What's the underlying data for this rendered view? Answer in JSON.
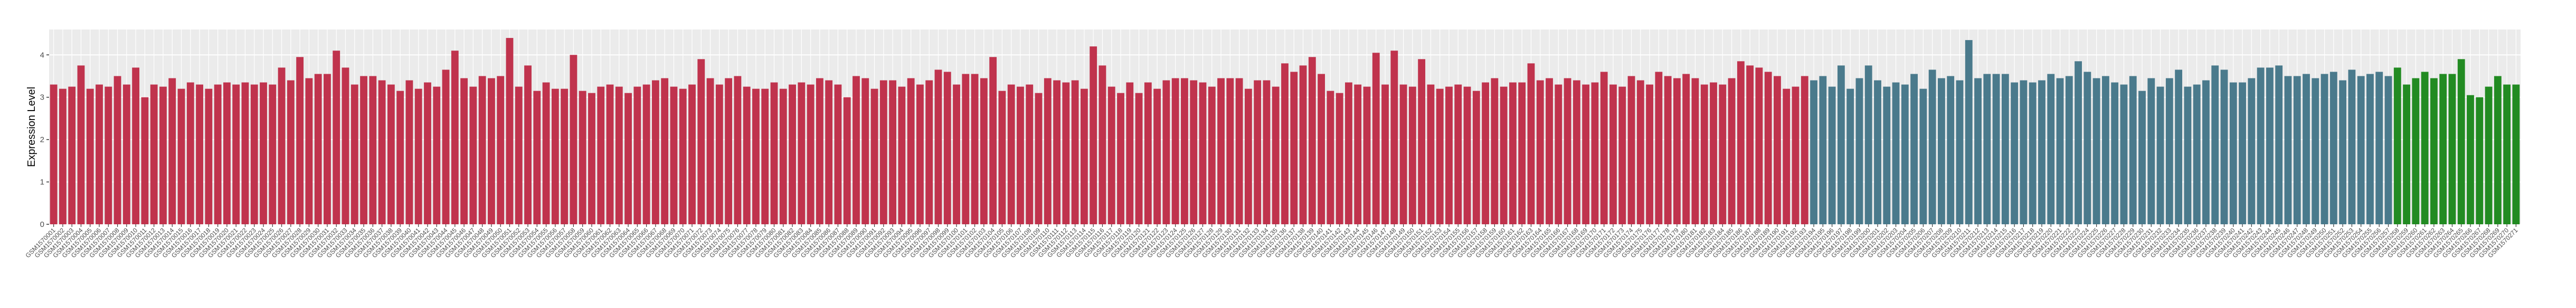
{
  "chart_data": {
    "type": "bar",
    "ylabel": "Expression Level",
    "ylim": [
      0,
      4.6
    ],
    "yticks": [
      0,
      1,
      2,
      3,
      4
    ],
    "grid": true,
    "categories": [
      "GSM1570001",
      "GSM1570002",
      "GSM1570003",
      "GSM1570004",
      "GSM1570005",
      "GSM1570006",
      "GSM1570007",
      "GSM1570008",
      "GSM1570009",
      "GSM1570010",
      "GSM1570011",
      "GSM1570012",
      "GSM1570013",
      "GSM1570014",
      "GSM1570015",
      "GSM1570016",
      "GSM1570017",
      "GSM1570018",
      "GSM1570019",
      "GSM1570020",
      "GSM1570021",
      "GSM1570022",
      "GSM1570023",
      "GSM1570024",
      "GSM1570025",
      "GSM1570026",
      "GSM1570027",
      "GSM1570028",
      "GSM1570029",
      "GSM1570030",
      "GSM1570031",
      "GSM1570032",
      "GSM1570033",
      "GSM1570034",
      "GSM1570035",
      "GSM1570036",
      "GSM1570037",
      "GSM1570038",
      "GSM1570039",
      "GSM1570040",
      "GSM1570041",
      "GSM1570042",
      "GSM1570043",
      "GSM1570044",
      "GSM1570045",
      "GSM1570046",
      "GSM1570047",
      "GSM1570048",
      "GSM1570049",
      "GSM1570050",
      "GSM1570051",
      "GSM1570052",
      "GSM1570053",
      "GSM1570054",
      "GSM1570055",
      "GSM1570056",
      "GSM1570057",
      "GSM1570058",
      "GSM1570059",
      "GSM1570060",
      "GSM1570061",
      "GSM1570062",
      "GSM1570063",
      "GSM1570064",
      "GSM1570065",
      "GSM1570066",
      "GSM1570067",
      "GSM1570068",
      "GSM1570069",
      "GSM1570070",
      "GSM1570071",
      "GSM1570072",
      "GSM1570073",
      "GSM1570074",
      "GSM1570075",
      "GSM1570076",
      "GSM1570077",
      "GSM1570078",
      "GSM1570079",
      "GSM1570080",
      "GSM1570081",
      "GSM1570082",
      "GSM1570083",
      "GSM1570084",
      "GSM1570085",
      "GSM1570086",
      "GSM1570087",
      "GSM1570088",
      "GSM1570089",
      "GSM1570090",
      "GSM1570091",
      "GSM1570092",
      "GSM1570093",
      "GSM1570094",
      "GSM1570095",
      "GSM1570096",
      "GSM1570097",
      "GSM1570098",
      "GSM1570099",
      "GSM1570100",
      "GSM1570101",
      "GSM1570102",
      "GSM1570103",
      "GSM1570104",
      "GSM1570105",
      "GSM1570106",
      "GSM1570107",
      "GSM1570108",
      "GSM1570109",
      "GSM1570110",
      "GSM1570111",
      "GSM1570112",
      "GSM1570113",
      "GSM1570114",
      "GSM1570115",
      "GSM1570116",
      "GSM1570117",
      "GSM1570118",
      "GSM1570119",
      "GSM1570120",
      "GSM1570121",
      "GSM1570122",
      "GSM1570123",
      "GSM1570124",
      "GSM1570125",
      "GSM1570126",
      "GSM1570127",
      "GSM1570128",
      "GSM1570129",
      "GSM1570130",
      "GSM1570131",
      "GSM1570132",
      "GSM1570133",
      "GSM1570134",
      "GSM1570135",
      "GSM1570136",
      "GSM1570137",
      "GSM1570138",
      "GSM1570139",
      "GSM1570140",
      "GSM1570141",
      "GSM1570142",
      "GSM1570143",
      "GSM1570144",
      "GSM1570145",
      "GSM1570146",
      "GSM1570147",
      "GSM1570148",
      "GSM1570149",
      "GSM1570150",
      "GSM1570151",
      "GSM1570152",
      "GSM1570153",
      "GSM1570154",
      "GSM1570155",
      "GSM1570156",
      "GSM1570157",
      "GSM1570158",
      "GSM1570159",
      "GSM1570160",
      "GSM1570161",
      "GSM1570162",
      "GSM1570163",
      "GSM1570164",
      "GSM1570165",
      "GSM1570166",
      "GSM1570167",
      "GSM1570168",
      "GSM1570169",
      "GSM1570170",
      "GSM1570171",
      "GSM1570172",
      "GSM1570173",
      "GSM1570174",
      "GSM1570175",
      "GSM1570176",
      "GSM1570177",
      "GSM1570178",
      "GSM1570179",
      "GSM1570180",
      "GSM1570181",
      "GSM1570182",
      "GSM1570183",
      "GSM1570184",
      "GSM1570185",
      "GSM1570186",
      "GSM1570187",
      "GSM1570188",
      "GSM1570189",
      "GSM1570190",
      "GSM1570191",
      "GSM1570192",
      "GSM1570193",
      "GSM1570194",
      "GSM1570195",
      "GSM1570196",
      "GSM1570197",
      "GSM1570198",
      "GSM1570199",
      "GSM1570200",
      "GSM1570201",
      "GSM1570202",
      "GSM1570203",
      "GSM1570204",
      "GSM1570205",
      "GSM1570206",
      "GSM1570207",
      "GSM1570208",
      "GSM1570209",
      "GSM1570210",
      "GSM1570211",
      "GSM1570212",
      "GSM1570213",
      "GSM1570214",
      "GSM1570215",
      "GSM1570216",
      "GSM1570217",
      "GSM1570218",
      "GSM1570219",
      "GSM1570220",
      "GSM1570221",
      "GSM1570222",
      "GSM1570223",
      "GSM1570224",
      "GSM1570225",
      "GSM1570226",
      "GSM1570227",
      "GSM1570228",
      "GSM1570229",
      "GSM1570230",
      "GSM1570231",
      "GSM1570232",
      "GSM1570233",
      "GSM1570234",
      "GSM1570235",
      "GSM1570236",
      "GSM1570237",
      "GSM1570238",
      "GSM1570239",
      "GSM1570240",
      "GSM1570241",
      "GSM1570242",
      "GSM1570243",
      "GSM1570244",
      "GSM1570245",
      "GSM1570246",
      "GSM1570247",
      "GSM1570248",
      "GSM1570249",
      "GSM1570250",
      "GSM1570251",
      "GSM1570252",
      "GSM1570253",
      "GSM1570254",
      "GSM1570255",
      "GSM1570256",
      "GSM1570257",
      "GSM1570258",
      "GSM1570259",
      "GSM1570260",
      "GSM1570261",
      "GSM1570262",
      "GSM1570263",
      "GSM1570264",
      "GSM1570265",
      "GSM1570266",
      "GSM1570267",
      "GSM1570268",
      "GSM1570269",
      "GSM1570270",
      "GSM1570271"
    ],
    "values": [
      3.3,
      3.2,
      3.25,
      3.75,
      3.2,
      3.3,
      3.25,
      3.5,
      3.3,
      3.7,
      3.0,
      3.3,
      3.25,
      3.45,
      3.2,
      3.35,
      3.3,
      3.2,
      3.3,
      3.35,
      3.3,
      3.35,
      3.3,
      3.35,
      3.3,
      3.7,
      3.4,
      3.95,
      3.45,
      3.55,
      3.55,
      4.1,
      3.7,
      3.3,
      3.5,
      3.5,
      3.4,
      3.3,
      3.15,
      3.4,
      3.2,
      3.35,
      3.25,
      3.65,
      4.1,
      3.45,
      3.25,
      3.5,
      3.45,
      3.5,
      4.4,
      3.25,
      3.75,
      3.15,
      3.35,
      3.2,
      3.2,
      4.0,
      3.15,
      3.1,
      3.25,
      3.3,
      3.25,
      3.1,
      3.25,
      3.3,
      3.4,
      3.45,
      3.25,
      3.2,
      3.3,
      3.9,
      3.45,
      3.3,
      3.45,
      3.5,
      3.25,
      3.2,
      3.2,
      3.35,
      3.2,
      3.3,
      3.35,
      3.3,
      3.45,
      3.4,
      3.3,
      3.0,
      3.5,
      3.45,
      3.2,
      3.4,
      3.4,
      3.25,
      3.45,
      3.3,
      3.4,
      3.65,
      3.6,
      3.3,
      3.55,
      3.55,
      3.45,
      3.95,
      3.15,
      3.3,
      3.25,
      3.3,
      3.1,
      3.45,
      3.4,
      3.35,
      3.4,
      3.2,
      4.2,
      3.75,
      3.25,
      3.1,
      3.35,
      3.1,
      3.35,
      3.2,
      3.4,
      3.45,
      3.45,
      3.4,
      3.35,
      3.25,
      3.45,
      3.45,
      3.45,
      3.2,
      3.4,
      3.4,
      3.25,
      3.8,
      3.6,
      3.75,
      3.95,
      3.55,
      3.15,
      3.1,
      3.35,
      3.3,
      3.25,
      4.05,
      3.3,
      4.1,
      3.3,
      3.25,
      3.9,
      3.3,
      3.2,
      3.25,
      3.3,
      3.25,
      3.15,
      3.35,
      3.45,
      3.25,
      3.35,
      3.35,
      3.8,
      3.4,
      3.45,
      3.3,
      3.45,
      3.4,
      3.3,
      3.35,
      3.6,
      3.3,
      3.25,
      3.5,
      3.4,
      3.3,
      3.6,
      3.5,
      3.45,
      3.55,
      3.45,
      3.3,
      3.35,
      3.3,
      3.45,
      3.85,
      3.75,
      3.7,
      3.6,
      3.5,
      3.2,
      3.25,
      3.5,
      3.4,
      3.5,
      3.25,
      3.75,
      3.2,
      3.45,
      3.75,
      3.4,
      3.25,
      3.35,
      3.3,
      3.55,
      3.2,
      3.65,
      3.45,
      3.5,
      3.4,
      4.35,
      3.45,
      3.55,
      3.55,
      3.55,
      3.35,
      3.4,
      3.35,
      3.4,
      3.55,
      3.45,
      3.5,
      3.85,
      3.6,
      3.45,
      3.5,
      3.35,
      3.3,
      3.5,
      3.15,
      3.45,
      3.25,
      3.45,
      3.65,
      3.25,
      3.3,
      3.4,
      3.75,
      3.65,
      3.35,
      3.35,
      3.45,
      3.7,
      3.7,
      3.75,
      3.5,
      3.5,
      3.55,
      3.45,
      3.55,
      3.6,
      3.4,
      3.65,
      3.5,
      3.55,
      3.6,
      3.5,
      3.7,
      3.3,
      3.45,
      3.6,
      3.45,
      3.55,
      3.55,
      3.9,
      3.05,
      3.0,
      3.25,
      3.5,
      3.3,
      3.3
    ],
    "colors": [
      "#c0334d",
      "#c0334d",
      "#c0334d",
      "#c0334d",
      "#c0334d",
      "#c0334d",
      "#c0334d",
      "#c0334d",
      "#c0334d",
      "#c0334d",
      "#c0334d",
      "#c0334d",
      "#c0334d",
      "#c0334d",
      "#c0334d",
      "#c0334d",
      "#c0334d",
      "#c0334d",
      "#c0334d",
      "#c0334d",
      "#c0334d",
      "#c0334d",
      "#c0334d",
      "#c0334d",
      "#c0334d",
      "#c0334d",
      "#c0334d",
      "#c0334d",
      "#c0334d",
      "#c0334d",
      "#c0334d",
      "#c0334d",
      "#c0334d",
      "#c0334d",
      "#c0334d",
      "#c0334d",
      "#c0334d",
      "#c0334d",
      "#c0334d",
      "#c0334d",
      "#c0334d",
      "#c0334d",
      "#c0334d",
      "#c0334d",
      "#c0334d",
      "#c0334d",
      "#c0334d",
      "#c0334d",
      "#c0334d",
      "#c0334d",
      "#c0334d",
      "#c0334d",
      "#c0334d",
      "#c0334d",
      "#c0334d",
      "#c0334d",
      "#c0334d",
      "#c0334d",
      "#c0334d",
      "#c0334d",
      "#c0334d",
      "#c0334d",
      "#c0334d",
      "#c0334d",
      "#c0334d",
      "#c0334d",
      "#c0334d",
      "#c0334d",
      "#c0334d",
      "#c0334d",
      "#c0334d",
      "#c0334d",
      "#c0334d",
      "#c0334d",
      "#c0334d",
      "#c0334d",
      "#c0334d",
      "#c0334d",
      "#c0334d",
      "#c0334d",
      "#c0334d",
      "#c0334d",
      "#c0334d",
      "#c0334d",
      "#c0334d",
      "#c0334d",
      "#c0334d",
      "#c0334d",
      "#c0334d",
      "#c0334d",
      "#c0334d",
      "#c0334d",
      "#c0334d",
      "#c0334d",
      "#c0334d",
      "#c0334d",
      "#c0334d",
      "#c0334d",
      "#c0334d",
      "#c0334d",
      "#c0334d",
      "#c0334d",
      "#c0334d",
      "#c0334d",
      "#c0334d",
      "#c0334d",
      "#c0334d",
      "#c0334d",
      "#c0334d",
      "#c0334d",
      "#c0334d",
      "#c0334d",
      "#c0334d",
      "#c0334d",
      "#c0334d",
      "#c0334d",
      "#c0334d",
      "#c0334d",
      "#c0334d",
      "#c0334d",
      "#c0334d",
      "#c0334d",
      "#c0334d",
      "#c0334d",
      "#c0334d",
      "#c0334d",
      "#c0334d",
      "#c0334d",
      "#c0334d",
      "#c0334d",
      "#c0334d",
      "#c0334d",
      "#c0334d",
      "#c0334d",
      "#c0334d",
      "#c0334d",
      "#c0334d",
      "#c0334d",
      "#c0334d",
      "#c0334d",
      "#c0334d",
      "#c0334d",
      "#c0334d",
      "#c0334d",
      "#c0334d",
      "#c0334d",
      "#c0334d",
      "#c0334d",
      "#c0334d",
      "#c0334d",
      "#c0334d",
      "#c0334d",
      "#c0334d",
      "#c0334d",
      "#c0334d",
      "#c0334d",
      "#c0334d",
      "#c0334d",
      "#c0334d",
      "#c0334d",
      "#c0334d",
      "#c0334d",
      "#c0334d",
      "#c0334d",
      "#c0334d",
      "#c0334d",
      "#c0334d",
      "#c0334d",
      "#c0334d",
      "#c0334d",
      "#c0334d",
      "#c0334d",
      "#c0334d",
      "#c0334d",
      "#c0334d",
      "#c0334d",
      "#c0334d",
      "#c0334d",
      "#c0334d",
      "#c0334d",
      "#c0334d",
      "#c0334d",
      "#c0334d",
      "#c0334d",
      "#c0334d",
      "#c0334d",
      "#c0334d",
      "#c0334d",
      "#c0334d",
      "#c0334d",
      "#c0334d",
      "#c0334d",
      "#c0334d",
      "#4a7a8c",
      "#4a7a8c",
      "#4a7a8c",
      "#4a7a8c",
      "#4a7a8c",
      "#4a7a8c",
      "#4a7a8c",
      "#4a7a8c",
      "#4a7a8c",
      "#4a7a8c",
      "#4a7a8c",
      "#4a7a8c",
      "#4a7a8c",
      "#4a7a8c",
      "#4a7a8c",
      "#4a7a8c",
      "#4a7a8c",
      "#4a7a8c",
      "#4a7a8c",
      "#4a7a8c",
      "#4a7a8c",
      "#4a7a8c",
      "#4a7a8c",
      "#4a7a8c",
      "#4a7a8c",
      "#4a7a8c",
      "#4a7a8c",
      "#4a7a8c",
      "#4a7a8c",
      "#4a7a8c",
      "#4a7a8c",
      "#4a7a8c",
      "#4a7a8c",
      "#4a7a8c",
      "#4a7a8c",
      "#4a7a8c",
      "#4a7a8c",
      "#4a7a8c",
      "#4a7a8c",
      "#4a7a8c",
      "#4a7a8c",
      "#4a7a8c",
      "#4a7a8c",
      "#4a7a8c",
      "#4a7a8c",
      "#4a7a8c",
      "#4a7a8c",
      "#4a7a8c",
      "#4a7a8c",
      "#4a7a8c",
      "#4a7a8c",
      "#4a7a8c",
      "#4a7a8c",
      "#4a7a8c",
      "#4a7a8c",
      "#4a7a8c",
      "#4a7a8c",
      "#4a7a8c",
      "#4a7a8c",
      "#4a7a8c",
      "#4a7a8c",
      "#4a7a8c",
      "#4a7a8c",
      "#4a7a8c",
      "#228b22",
      "#228b22",
      "#228b22",
      "#228b22",
      "#228b22",
      "#228b22",
      "#228b22",
      "#228b22",
      "#228b22",
      "#228b22",
      "#228b22",
      "#228b22",
      "#228b22",
      "#228b22",
      "#228b22",
      "#228b22",
      "#228b22"
    ]
  }
}
